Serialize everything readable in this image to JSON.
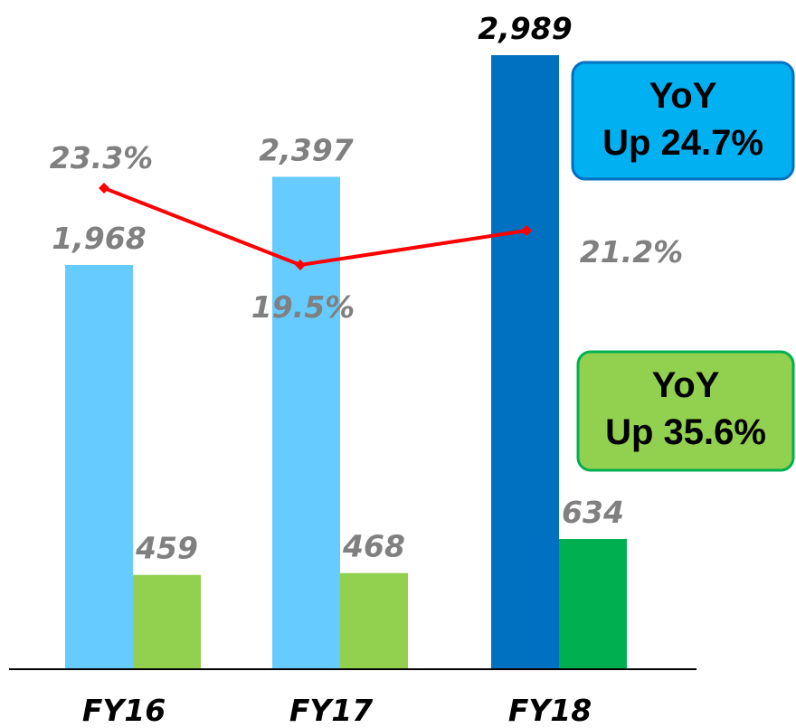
{
  "chart_data": {
    "type": "bar",
    "categories": [
      "FY16",
      "FY17",
      "FY18"
    ],
    "series": [
      {
        "colors": [
          "#66ccff",
          "#66ccff",
          "#0070c0"
        ],
        "label_colors": [
          "#808080",
          "#808080",
          "#000000"
        ],
        "values": [
          1968,
          2397,
          2989
        ],
        "value_labels": [
          "1,968",
          "2,397",
          "2,989"
        ]
      },
      {
        "colors": [
          "#92d050",
          "#92d050",
          "#00b050"
        ],
        "label_colors": [
          "#808080",
          "#808080",
          "#808080"
        ],
        "values": [
          459,
          468,
          634
        ],
        "value_labels": [
          "459",
          "468",
          "634"
        ]
      },
      {
        "type": "line",
        "color": "#ff0000",
        "label_color": "#808080",
        "values": [
          23.3,
          19.5,
          21.2
        ],
        "value_labels": [
          "23.3%",
          "19.5%",
          "21.2%"
        ]
      }
    ],
    "annotations": [
      {
        "lines": [
          "YoY",
          "Up 24.7%"
        ],
        "fill": "#00b0f0",
        "border": "#0070c0"
      },
      {
        "lines": [
          "YoY",
          "Up 35.6%"
        ],
        "fill": "#92d050",
        "border": "#00b050"
      }
    ]
  }
}
